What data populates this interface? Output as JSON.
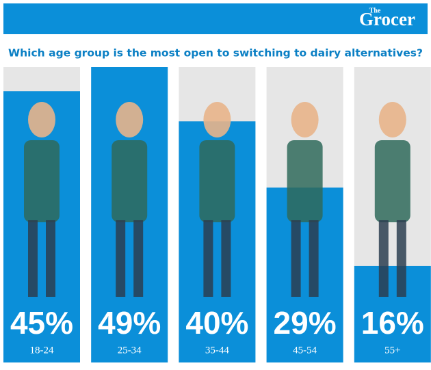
{
  "chart_data": {
    "type": "bar",
    "brand_prefix": "The",
    "brand": "Grocer",
    "title": "Which age group is the most open to switching to dairy alternatives?",
    "categories": [
      "18-24",
      "25-34",
      "35-44",
      "45-54",
      "55+"
    ],
    "values": [
      45,
      49,
      40,
      29,
      16
    ],
    "value_labels": [
      "45%",
      "49%",
      "40%",
      "29%",
      "16%"
    ],
    "color": "#0b8fd9",
    "background_color": "#e6e6e6",
    "ylim": [
      0,
      49
    ]
  }
}
